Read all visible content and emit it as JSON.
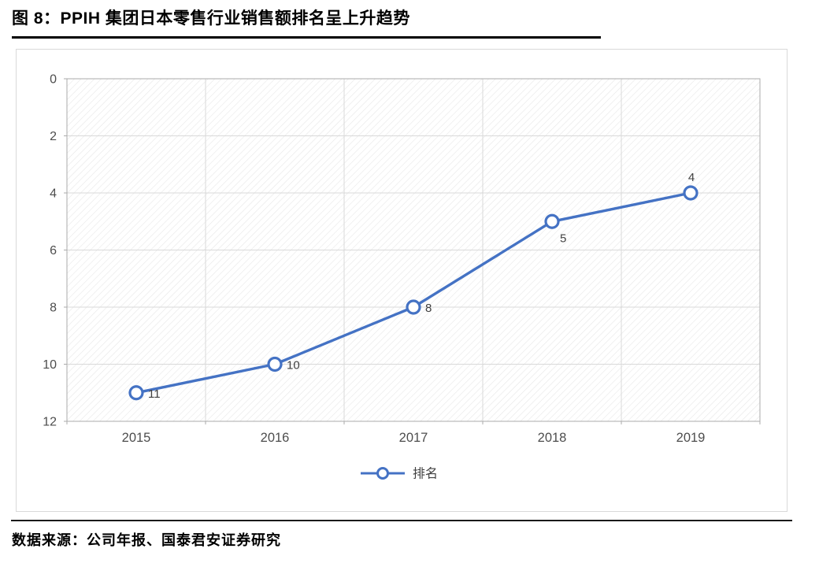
{
  "header": {
    "title": "图 8：PPIH 集团日本零售行业销售额排名呈上升趋势"
  },
  "footer": {
    "source": "数据来源：公司年报、国泰君安证券研究"
  },
  "chart_data": {
    "type": "line",
    "title": "",
    "categories": [
      "2015",
      "2016",
      "2017",
      "2018",
      "2019"
    ],
    "series": [
      {
        "name": "排名",
        "values": [
          11,
          10,
          8,
          5,
          4
        ]
      }
    ],
    "xlabel": "",
    "ylabel": "",
    "ylim": [
      0,
      12
    ],
    "y_ticks": [
      0,
      2,
      4,
      6,
      8,
      10,
      12
    ],
    "y_axis_inverted": true,
    "grid": true,
    "legend_position": "bottom-center",
    "marker": "open-circle",
    "plot_background": "diagonal-hatch",
    "colors": {
      "line": "#4472c4",
      "grid": "#d9d9d9",
      "axis": "#ababab",
      "hatch": "#e6e6e6",
      "tick_label": "#4d4d4d",
      "data_label": "#404040",
      "legend_label": "#404040"
    }
  }
}
